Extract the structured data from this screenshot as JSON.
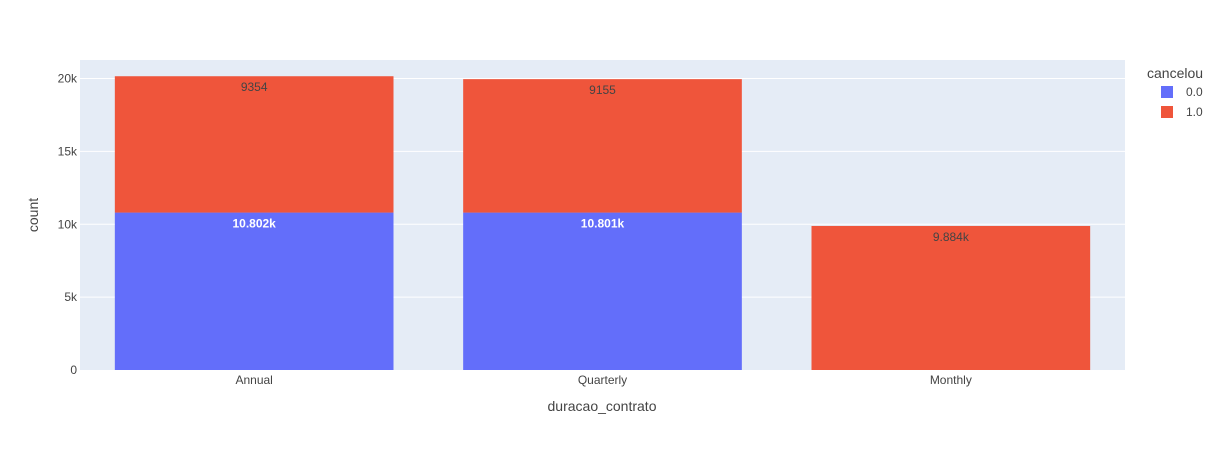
{
  "chart_data": {
    "type": "bar",
    "barmode": "stack",
    "title": "",
    "xlabel": "duracao_contrato",
    "ylabel": "count",
    "categories": [
      "Annual",
      "Quarterly",
      "Monthly"
    ],
    "series": [
      {
        "name": "0.0",
        "color": "#636efa",
        "values": [
          10802,
          10801,
          0
        ],
        "labels": [
          "10.802k",
          "10.801k",
          ""
        ],
        "label_color": "#ffffff"
      },
      {
        "name": "1.0",
        "color": "#ef553b",
        "values": [
          9354,
          9155,
          9884
        ],
        "labels": [
          "9354",
          "9155",
          "9.884k"
        ],
        "label_color": "#444444"
      }
    ],
    "ylim": [
      0,
      21270
    ],
    "yticks": [
      0,
      5000,
      10000,
      15000,
      20000
    ],
    "yticklabels": [
      "0",
      "5k",
      "10k",
      "15k",
      "20k"
    ],
    "legend": {
      "title": "cancelou",
      "position": "top-right"
    },
    "grid": true,
    "plot_bg": "#e5ecf6"
  }
}
